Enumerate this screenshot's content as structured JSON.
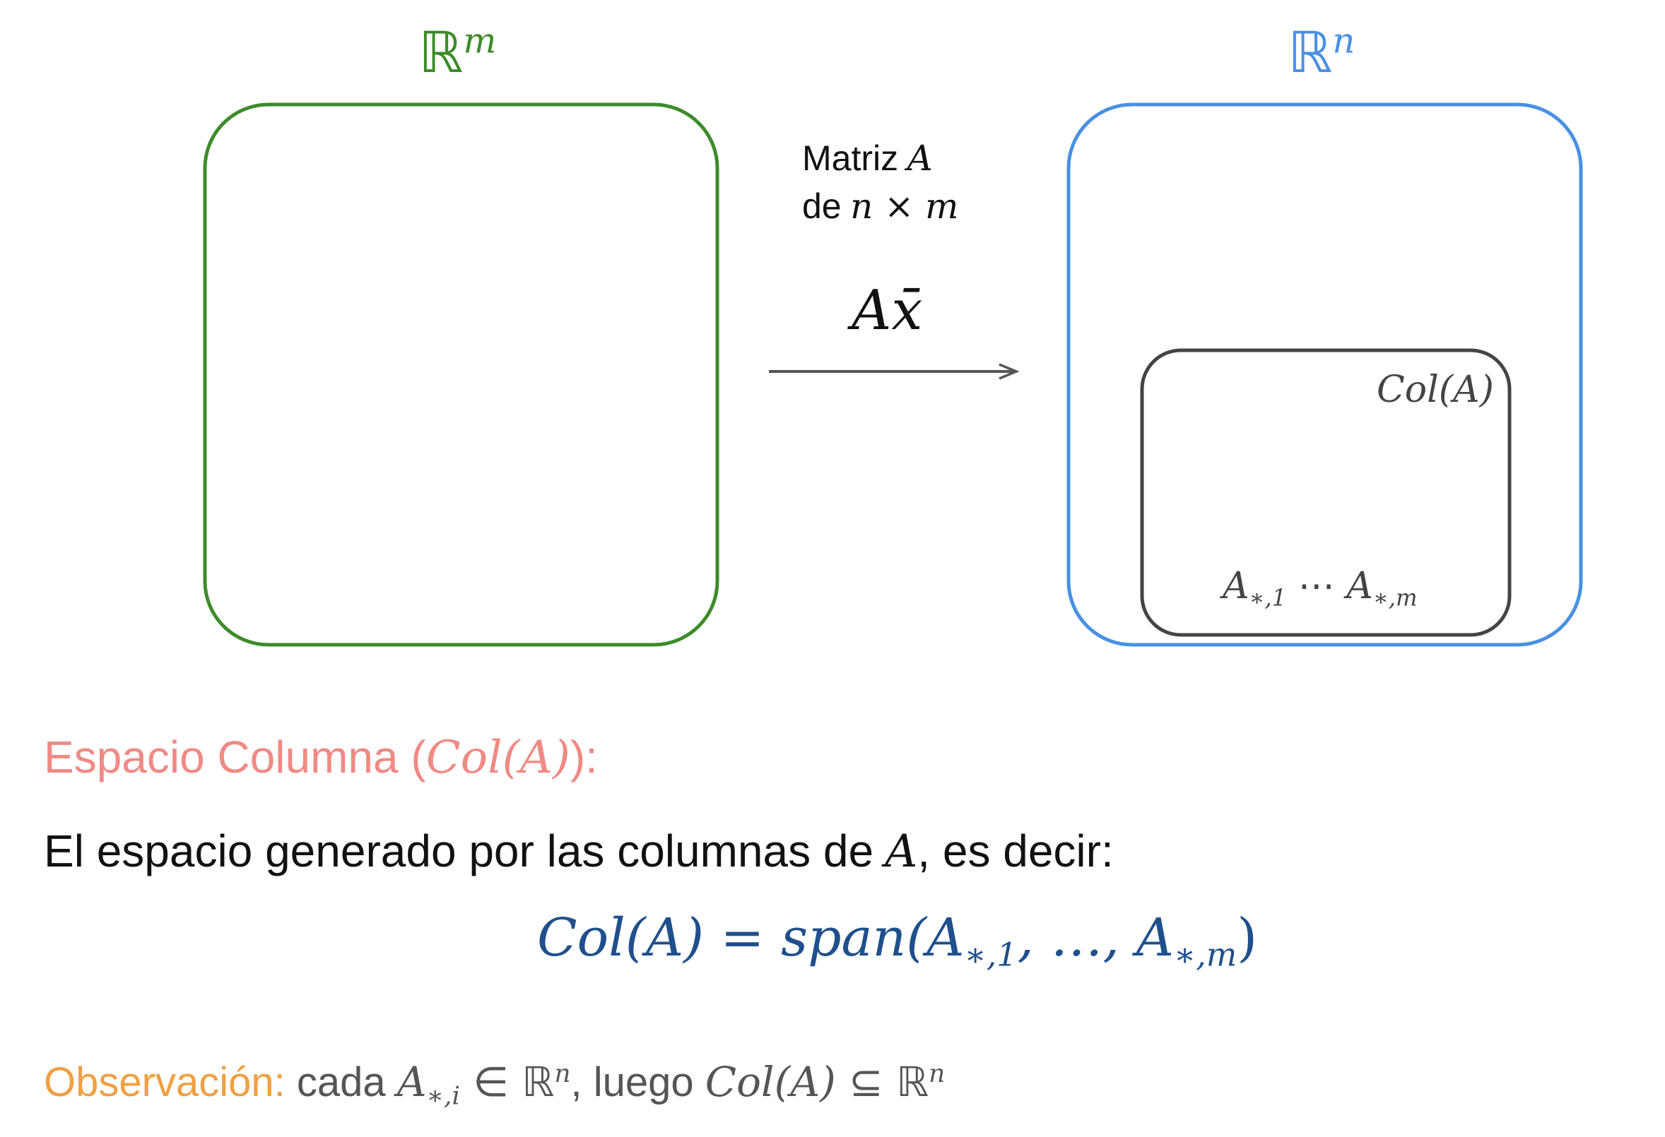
{
  "diagram": {
    "domain": {
      "base": "ℝ",
      "exp": "m",
      "color": "#3d8b2a"
    },
    "codomain": {
      "base": "ℝ",
      "exp": "n",
      "color": "#4a90e2"
    },
    "map": {
      "line1_text": "Matriz",
      "line1_var": "A",
      "line2_text": "de",
      "line2_dims": "n × m",
      "operation": "Ax̄"
    },
    "colspace": {
      "label": "Col(A)",
      "col_first": "A",
      "col_first_sub": "∗,1",
      "ellipsis": "⋯",
      "col_last": "A",
      "col_last_sub": "∗,m"
    }
  },
  "text": {
    "heading_text": "Espacio Columna (",
    "heading_math": "Col(A)",
    "heading_close": "):",
    "heading_color": "#ef8a84",
    "definition_text": "El espacio generado por las columnas de",
    "definition_var": "A",
    "definition_end": ", es decir:",
    "formula_lhs": "Col(A)",
    "formula_eq": " = ",
    "formula_span": "span",
    "formula_open": "(A",
    "formula_sub1": "∗,1",
    "formula_mid": ", …, A",
    "formula_sub2": "∗,m",
    "formula_close": ")",
    "formula_color": "#1f4f8c",
    "note_label": "Observación:",
    "note_label_color": "#f0a044",
    "note_text1": " cada ",
    "note_var": "A",
    "note_sub": "∗,i",
    "note_in": " ∈ ",
    "note_R1": "ℝ",
    "note_exp1": "n",
    "note_text2": ", luego ",
    "note_col": "Col(A)",
    "note_subset": " ⊆ ",
    "note_R2": "ℝ",
    "note_exp2": "n"
  }
}
